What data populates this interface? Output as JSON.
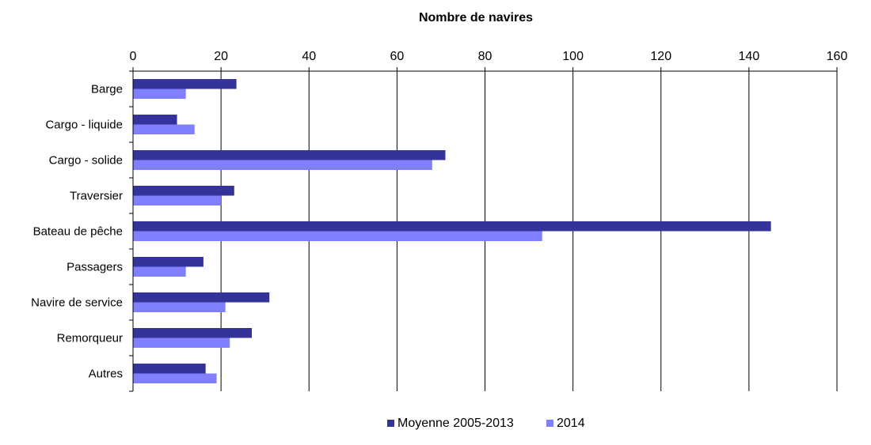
{
  "chart_data": {
    "type": "bar",
    "orientation": "horizontal",
    "title": "Nombre de navires",
    "xlim": [
      0,
      160
    ],
    "x_ticks": [
      0,
      20,
      40,
      60,
      80,
      100,
      120,
      140,
      160
    ],
    "x_axis_position": "top",
    "grid": "vertical",
    "legend_position": "bottom",
    "categories": [
      "Barge",
      "Cargo - liquide",
      "Cargo - solide",
      "Traversier",
      "Bateau de pêche",
      "Passagers",
      "Navire de service",
      "Remorqueur",
      "Autres"
    ],
    "series": [
      {
        "name": "Moyenne 2005-2013",
        "color": "#333399",
        "values": [
          23.5,
          10,
          71,
          23,
          145,
          16,
          31,
          27,
          16.5
        ]
      },
      {
        "name": "2014",
        "color": "#8080ff",
        "values": [
          12,
          14,
          68,
          20,
          93,
          12,
          21,
          22,
          19
        ]
      }
    ]
  }
}
